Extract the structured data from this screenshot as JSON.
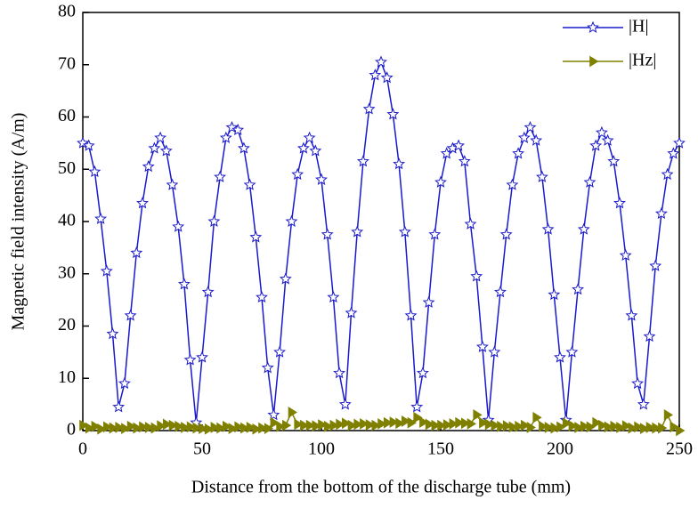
{
  "chart_data": {
    "type": "line",
    "x_label": "Distance from the bottom of the discharge tube (mm)",
    "y_label": "Magnetic field intensity (A/m)",
    "x": [
      0,
      2.5,
      5,
      7.5,
      10,
      12.5,
      15,
      17.5,
      20,
      22.5,
      25,
      27.5,
      30,
      32.5,
      35,
      37.5,
      40,
      42.5,
      45,
      47.5,
      50,
      52.5,
      55,
      57.5,
      60,
      62.5,
      65,
      67.5,
      70,
      72.5,
      75,
      77.5,
      80,
      82.5,
      85,
      87.5,
      90,
      92.5,
      95,
      97.5,
      100,
      102.5,
      105,
      107.5,
      110,
      112.5,
      115,
      117.5,
      120,
      122.5,
      125,
      127.5,
      130,
      132.5,
      135,
      137.5,
      140,
      142.5,
      145,
      147.5,
      150,
      152.5,
      155,
      157.5,
      160,
      162.5,
      165,
      167.5,
      170,
      172.5,
      175,
      177.5,
      180,
      182.5,
      185,
      187.5,
      190,
      192.5,
      195,
      197.5,
      200,
      202.5,
      205,
      207.5,
      210,
      212.5,
      215,
      217.5,
      220,
      222.5,
      225,
      227.5,
      230,
      232.5,
      235,
      237.5,
      240,
      242.5,
      245,
      247.5,
      250
    ],
    "series": [
      {
        "name": "|H|",
        "color": "#1a1acc",
        "marker": "star",
        "values": [
          55,
          54.5,
          49.5,
          40.5,
          30.5,
          18.5,
          4.5,
          9,
          22,
          34,
          43.5,
          50.5,
          54,
          56,
          53.5,
          47,
          39,
          28,
          13.5,
          1.5,
          14,
          26.5,
          40,
          48.5,
          56,
          58,
          57.5,
          54,
          47,
          37,
          25.5,
          12,
          3,
          15,
          29,
          40,
          49,
          54,
          56,
          53.5,
          48,
          37.5,
          25.5,
          11,
          5,
          22.5,
          38,
          51.5,
          61.5,
          68,
          70.5,
          67.5,
          60.5,
          51,
          38,
          22,
          4.5,
          11,
          24.5,
          37.5,
          47.5,
          53,
          54,
          54.5,
          51.5,
          39.5,
          29.5,
          16,
          2,
          15,
          26.5,
          37.5,
          47,
          53,
          56,
          58,
          55.5,
          48.5,
          38.5,
          26,
          14,
          2,
          15,
          27,
          38.5,
          47.5,
          54.5,
          57,
          55.5,
          51.5,
          43.5,
          33.5,
          22,
          9,
          5,
          18,
          31.5,
          41.5,
          49,
          53,
          55
        ]
      },
      {
        "name": "|Hz|",
        "color": "#808000",
        "marker": "triangle",
        "values": [
          1,
          0.5,
          0.8,
          0.3,
          0.7,
          0.5,
          0.6,
          0.4,
          0.8,
          0.5,
          0.7,
          0.6,
          0.5,
          0.9,
          1.2,
          1,
          0.8,
          0.6,
          0.7,
          0.5,
          0.4,
          0.3,
          0.6,
          0.5,
          0.8,
          0.4,
          0.7,
          0.5,
          0.6,
          0.3,
          0.5,
          0.4,
          1.5,
          0.8,
          1,
          3.5,
          1.2,
          1,
          1,
          0.9,
          1.1,
          0.8,
          1,
          1.2,
          1.4,
          1,
          1.2,
          1.3,
          1.1,
          1,
          1.3,
          1.5,
          1.6,
          1.4,
          1.8,
          1.5,
          2.5,
          1.6,
          1.2,
          1,
          1,
          1.1,
          1.3,
          1.5,
          1.4,
          1.3,
          3,
          1.5,
          1.2,
          1,
          0.8,
          0.9,
          0.7,
          0.8,
          1,
          0.6,
          2.5,
          0.8,
          0.6,
          0.5,
          0.7,
          1.4,
          0.9,
          0.6,
          0.8,
          0.7,
          1.5,
          1,
          0.7,
          0.8,
          0.6,
          0.9,
          0.5,
          0.7,
          0.4,
          0.6,
          0.5,
          0.5,
          3,
          0.7,
          0
        ]
      }
    ],
    "xlim": [
      0,
      250
    ],
    "xticks": [
      0,
      50,
      100,
      150,
      200,
      250
    ],
    "ylim": [
      0,
      80
    ],
    "yticks": [
      0,
      10,
      20,
      30,
      40,
      50,
      60,
      70,
      80
    ],
    "legend": "upper right"
  }
}
